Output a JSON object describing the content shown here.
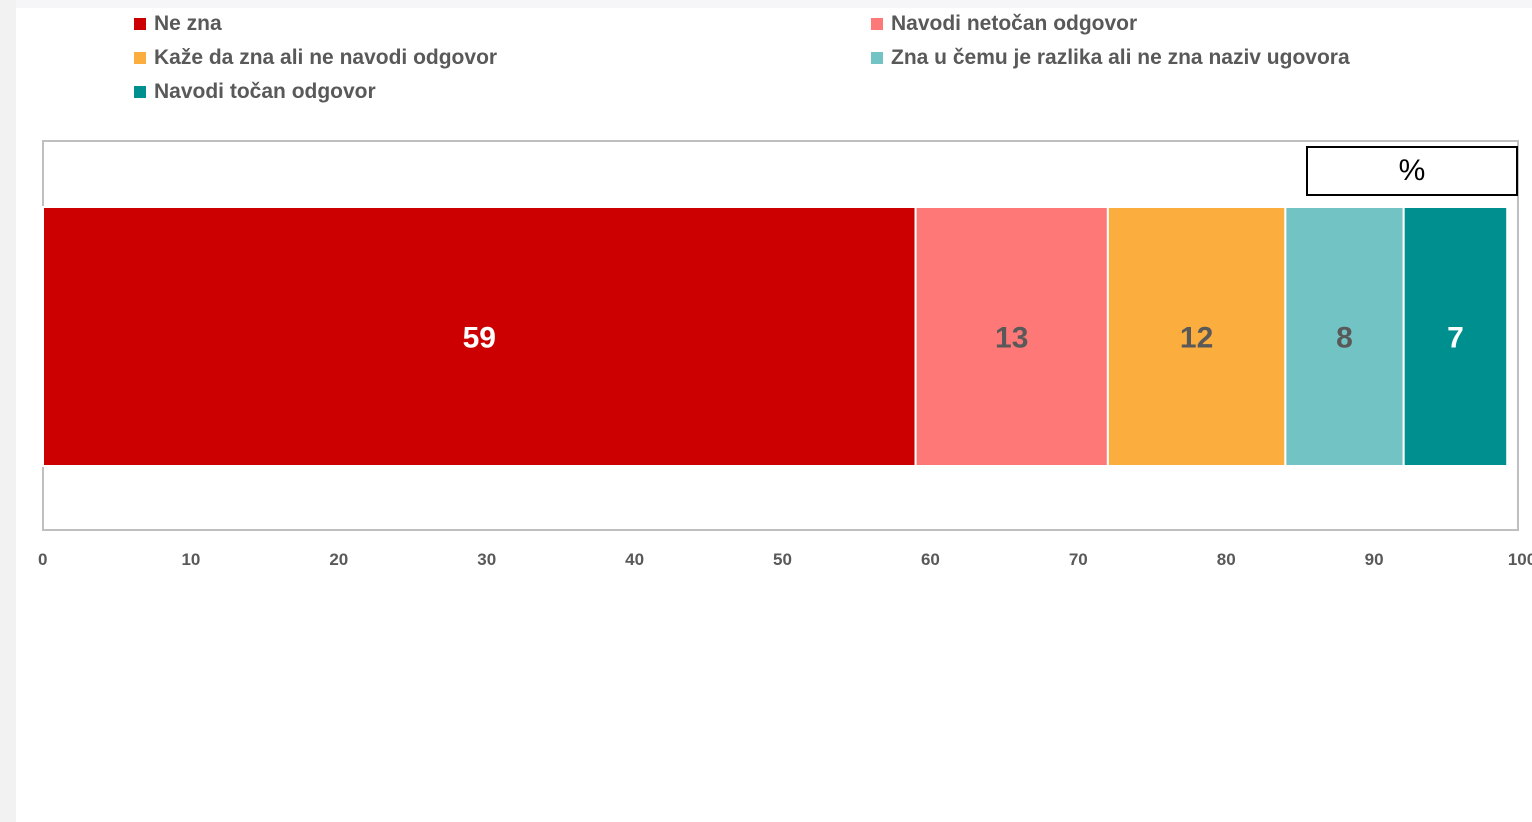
{
  "chart_data": {
    "type": "bar",
    "orientation": "horizontal-stacked-100",
    "unit_label": "%",
    "categories": [
      ""
    ],
    "series": [
      {
        "name": "Ne zna",
        "values": [
          59
        ],
        "color": "#cc0000",
        "label_color": "#ffffff"
      },
      {
        "name": "Navodi netočan odgovor",
        "values": [
          13
        ],
        "color": "#ff7878",
        "label_color": "#595959"
      },
      {
        "name": "Kaže da zna ali ne navodi odgovor",
        "values": [
          12
        ],
        "color": "#fbad3e",
        "label_color": "#595959"
      },
      {
        "name": "Zna u čemu je razlika ali ne zna naziv ugovora",
        "values": [
          8
        ],
        "color": "#72c3c3",
        "label_color": "#595959"
      },
      {
        "name": "Navodi točan odgovor",
        "values": [
          7
        ],
        "color": "#008f8f",
        "label_color": "#ffffff"
      }
    ],
    "xlim": [
      0,
      100
    ],
    "xticks": [
      "0",
      "10",
      "20",
      "30",
      "40",
      "50",
      "60",
      "70",
      "80",
      "90",
      "100"
    ],
    "legend_placement": "top",
    "grid": false
  }
}
